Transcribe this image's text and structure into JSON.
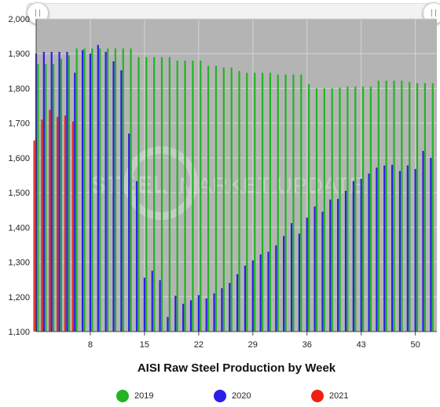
{
  "chart_data": {
    "type": "bar",
    "xlabel": "AISI Raw Steel Production by Week",
    "ylabel": "",
    "ylim": [
      1100,
      2000
    ],
    "xlim": [
      1,
      52
    ],
    "grid": true,
    "legend_position": "bottom",
    "x_ticks": [
      8,
      15,
      22,
      29,
      36,
      43,
      50
    ],
    "y_ticks": [
      1100,
      1200,
      1300,
      1400,
      1500,
      1600,
      1700,
      1800,
      1900,
      2000
    ],
    "x_tick_labels": [
      "8",
      "15",
      "22",
      "29",
      "36",
      "43",
      "50"
    ],
    "y_tick_labels": [
      "1,100",
      "1,200",
      "1,300",
      "1,400",
      "1,500",
      "1,600",
      "1,700",
      "1,800",
      "1,900",
      "2,000"
    ],
    "series": [
      {
        "name": "2019",
        "color": "#22b422",
        "weeks": [
          1,
          2,
          3,
          4,
          5,
          6,
          7,
          8,
          9,
          10,
          11,
          12,
          13,
          14,
          15,
          16,
          17,
          18,
          19,
          20,
          21,
          22,
          23,
          24,
          25,
          26,
          27,
          28,
          29,
          30,
          31,
          32,
          33,
          34,
          35,
          36,
          37,
          38,
          39,
          40,
          41,
          42,
          43,
          44,
          45,
          46,
          47,
          48,
          49,
          50,
          51,
          52
        ],
        "values": [
          1870,
          1870,
          1870,
          1885,
          1895,
          1915,
          1915,
          1915,
          1915,
          1915,
          1915,
          1915,
          1915,
          1890,
          1890,
          1890,
          1890,
          1890,
          1880,
          1880,
          1880,
          1880,
          1865,
          1865,
          1860,
          1860,
          1850,
          1845,
          1845,
          1845,
          1845,
          1840,
          1840,
          1840,
          1840,
          1812,
          1800,
          1800,
          1800,
          1802,
          1805,
          1805,
          1805,
          1805,
          1822,
          1822,
          1822,
          1822,
          1818,
          1815,
          1815,
          1815
        ]
      },
      {
        "name": "2020",
        "color": "#2a1fe6",
        "weeks": [
          1,
          2,
          3,
          4,
          5,
          6,
          7,
          8,
          9,
          10,
          11,
          12,
          13,
          14,
          15,
          16,
          17,
          18,
          19,
          20,
          21,
          22,
          23,
          24,
          25,
          26,
          27,
          28,
          29,
          30,
          31,
          32,
          33,
          34,
          35,
          36,
          37,
          38,
          39,
          40,
          41,
          42,
          43,
          44,
          45,
          46,
          47,
          48,
          49,
          50,
          51,
          52
        ],
        "values": [
          1900,
          1905,
          1905,
          1905,
          1905,
          1845,
          1910,
          1900,
          1925,
          1905,
          1878,
          1852,
          1670,
          1533,
          1255,
          1275,
          1248,
          1142,
          1203,
          1180,
          1190,
          1205,
          1195,
          1210,
          1225,
          1240,
          1265,
          1290,
          1305,
          1322,
          1330,
          1348,
          1375,
          1412,
          1382,
          1428,
          1460,
          1445,
          1480,
          1482,
          1505,
          1533,
          1540,
          1555,
          1572,
          1578,
          1580,
          1562,
          1578,
          1568,
          1620,
          1600
        ]
      },
      {
        "name": "2021",
        "color": "#ee2211",
        "weeks": [
          1,
          2,
          3,
          4,
          5,
          6
        ],
        "values": [
          1650,
          1710,
          1738,
          1718,
          1722,
          1705
        ]
      }
    ]
  },
  "watermark": {
    "text_bold": "STEEL",
    "text_light": "MARKET UPDATE"
  },
  "colors": {
    "plot_background": "#b4b4b4",
    "grid": "#d4d4d4"
  }
}
